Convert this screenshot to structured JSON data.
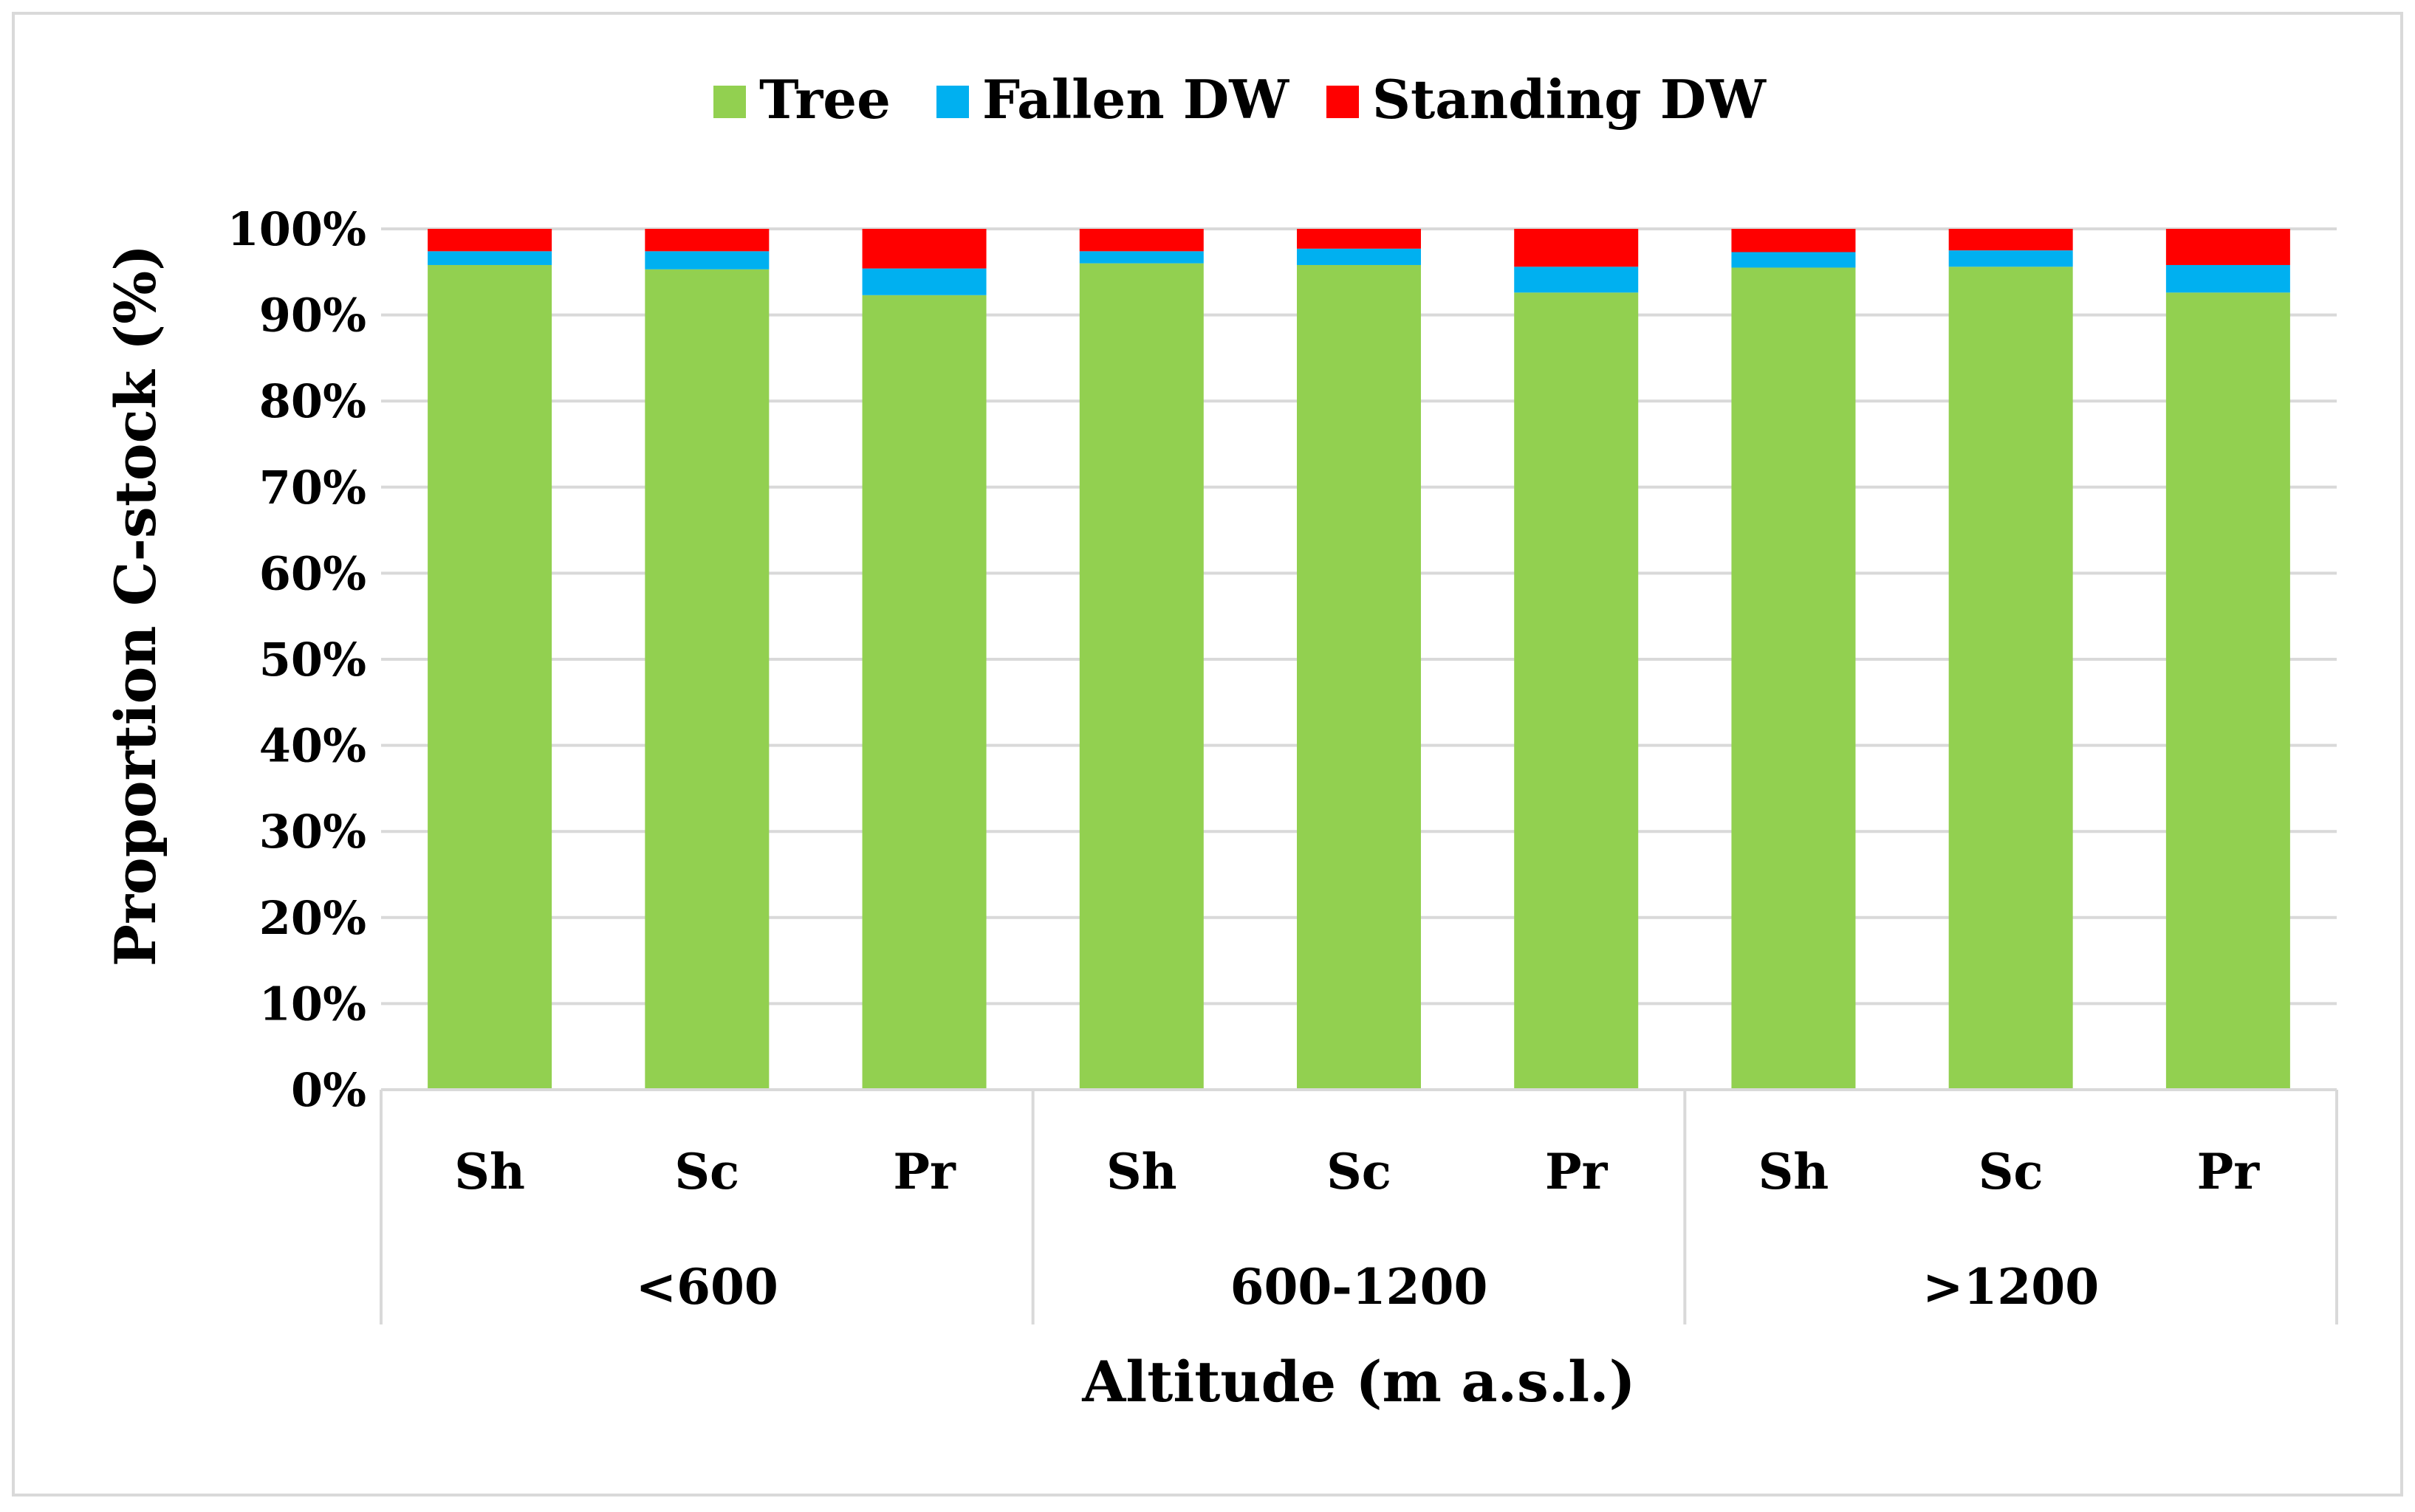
{
  "chart_data": {
    "type": "bar",
    "stacked": true,
    "percent": true,
    "title": "",
    "xlabel": "Altitude (m a.s.l.)",
    "ylabel": "Proportion C-stock (%)",
    "ylim": [
      0,
      100
    ],
    "yticks": [
      "0%",
      "10%",
      "20%",
      "30%",
      "40%",
      "50%",
      "60%",
      "70%",
      "80%",
      "90%",
      "100%"
    ],
    "groups": [
      {
        "label": "<600",
        "categories": [
          "Sh",
          "Sc",
          "Pr"
        ]
      },
      {
        "label": "600-1200",
        "categories": [
          "Sh",
          "Sc",
          "Pr"
        ]
      },
      {
        "label": ">1200",
        "categories": [
          "Sh",
          "Sc",
          "Pr"
        ]
      }
    ],
    "categories": [
      "Sh",
      "Sc",
      "Pr",
      "Sh",
      "Sc",
      "Pr",
      "Sh",
      "Sc",
      "Pr"
    ],
    "series": [
      {
        "name": "Tree",
        "color": "#92d050",
        "values": [
          95.8,
          95.3,
          92.3,
          96.0,
          95.8,
          92.6,
          95.5,
          95.6,
          92.6
        ]
      },
      {
        "name": "Fallen DW",
        "color": "#00b0f0",
        "values": [
          1.6,
          2.1,
          3.1,
          1.4,
          1.9,
          3.0,
          1.8,
          1.9,
          3.2
        ]
      },
      {
        "name": "Standing DW",
        "color": "#ff0000",
        "values": [
          2.6,
          2.6,
          4.6,
          2.6,
          2.3,
          4.4,
          2.7,
          2.5,
          4.2
        ]
      }
    ],
    "grid": true,
    "legend_position": "top"
  }
}
